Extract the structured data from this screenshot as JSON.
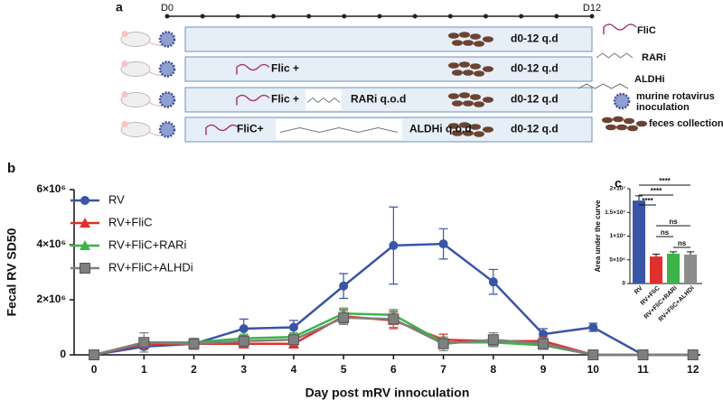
{
  "diagram": {
    "label": "a",
    "start": "D0",
    "end": "D12",
    "rows": [
      {
        "texts": [
          "d0-12 q.d"
        ]
      },
      {
        "texts": [
          "Flic +",
          "d0-12 q.d"
        ]
      },
      {
        "texts": [
          "Flic +",
          "RARi q.o.d",
          "d0-12 q.d"
        ]
      },
      {
        "texts": [
          "FliC+",
          "ALDHi q.o.d",
          "d0-12 q.d"
        ]
      }
    ],
    "legend": [
      "FliC",
      "RARi",
      "ALDHi",
      "murine rotavirus inoculation",
      "feces collection"
    ]
  },
  "chart_data": [
    {
      "type": "line",
      "label": "b",
      "ylabel": "Fecal  RV SD50",
      "xlabel": "Day post mRV innoculation",
      "x": [
        0,
        1,
        2,
        3,
        4,
        5,
        6,
        7,
        8,
        9,
        10,
        11,
        12
      ],
      "xlim": [
        -0.4,
        12.15
      ],
      "xticks": [
        0,
        1,
        2,
        3,
        4,
        5,
        6,
        7,
        8,
        9,
        10,
        11,
        12
      ],
      "ylim": [
        0,
        6000000
      ],
      "yticks": [
        0,
        {
          "value": 2000000,
          "label": "2×10⁶"
        },
        {
          "value": 4000000,
          "label": "4×10⁶"
        },
        {
          "value": 6000000,
          "label": "6×10⁶"
        }
      ],
      "series": [
        {
          "name": "RV",
          "color": "#3a55a6",
          "marker": "circle",
          "values": [
            0,
            300000,
            400000,
            950000,
            1000000,
            2500000,
            3970000,
            4030000,
            2650000,
            750000,
            1000000,
            0,
            0
          ],
          "errors": [
            0,
            100000,
            100000,
            350000,
            250000,
            450000,
            1400000,
            550000,
            450000,
            200000,
            150000,
            0,
            0
          ]
        },
        {
          "name": "RV+FliC",
          "color": "#e0302b",
          "marker": "triangle",
          "values": [
            0,
            400000,
            400000,
            400000,
            400000,
            1400000,
            1250000,
            550000,
            500000,
            500000,
            0,
            0,
            0
          ],
          "errors": [
            0,
            150000,
            150000,
            150000,
            150000,
            250000,
            300000,
            200000,
            200000,
            150000,
            0,
            0,
            0
          ]
        },
        {
          "name": "RV+FliC+RARi",
          "color": "#3cb449",
          "marker": "triangle",
          "values": [
            0,
            450000,
            450000,
            600000,
            650000,
            1500000,
            1450000,
            450000,
            450000,
            350000,
            0,
            0,
            0
          ],
          "errors": [
            0,
            150000,
            150000,
            150000,
            150000,
            200000,
            200000,
            150000,
            150000,
            150000,
            0,
            0,
            0
          ]
        },
        {
          "name": "RV+FliC+ALHDi",
          "color": "#7f7f7f",
          "marker": "square",
          "values": [
            0,
            450000,
            400000,
            500000,
            550000,
            1350000,
            1300000,
            400000,
            550000,
            400000,
            0,
            0,
            0
          ],
          "errors": [
            0,
            350000,
            200000,
            200000,
            200000,
            250000,
            300000,
            250000,
            250000,
            200000,
            0,
            0,
            0
          ]
        }
      ]
    },
    {
      "type": "bar",
      "label": "c",
      "ylabel": "Area under the curve",
      "categories": [
        "RV",
        "RV+FliC",
        "RV+FliC+RARi",
        "RV+FliC+ALHDi"
      ],
      "values": [
        17500000,
        5700000,
        6300000,
        6100000
      ],
      "errors": [
        1000000,
        500000,
        400000,
        600000
      ],
      "colors": [
        "#3a55a6",
        "#e0302b",
        "#3cb449",
        "#8c8c8c"
      ],
      "ylim": [
        0,
        20000000
      ],
      "yticks": [
        0,
        {
          "value": 5000000,
          "label": "5×10⁶"
        },
        {
          "value": 10000000,
          "label": "1×10⁷"
        },
        {
          "value": 15000000,
          "label": "1.5×10⁷"
        },
        {
          "value": 20000000,
          "label": "2×10⁷"
        }
      ],
      "annotations": [
        "****",
        "****",
        "****",
        "ns",
        "ns",
        "ns"
      ]
    }
  ]
}
